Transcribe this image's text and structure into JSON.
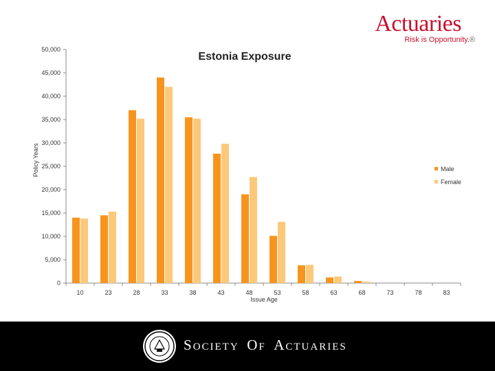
{
  "brand": {
    "name": "Actuaries",
    "tagline": "Risk is Opportunity.",
    "tagline_mark": "®"
  },
  "footer": {
    "org_name": "SOCIETY OF ACTUARIES",
    "seal_icon": "soa-seal-icon"
  },
  "chart_data": {
    "type": "bar",
    "title": "Estonia Exposure",
    "xlabel": "Issue Age",
    "ylabel": "Policy Years",
    "ylim": [
      0,
      50000
    ],
    "yticks": [
      "0",
      "5,000",
      "10,000",
      "15,000",
      "20,000",
      "25,000",
      "30,000",
      "35,000",
      "40,000",
      "45,000",
      "50,000"
    ],
    "categories": [
      "10",
      "23",
      "28",
      "33",
      "38",
      "43",
      "48",
      "53",
      "58",
      "63",
      "68",
      "73",
      "78",
      "83"
    ],
    "legend_position": "right",
    "grid": false,
    "series": [
      {
        "name": "Male",
        "color": "#f7941d",
        "values": [
          14000,
          14500,
          37000,
          44000,
          35500,
          27700,
          19000,
          10100,
          3800,
          1200,
          450,
          0,
          0,
          0
        ]
      },
      {
        "name": "Female",
        "color": "#fcc97a",
        "values": [
          13800,
          15300,
          35200,
          42000,
          35200,
          29800,
          22700,
          13100,
          3900,
          1400,
          300,
          0,
          0,
          0
        ]
      }
    ]
  }
}
